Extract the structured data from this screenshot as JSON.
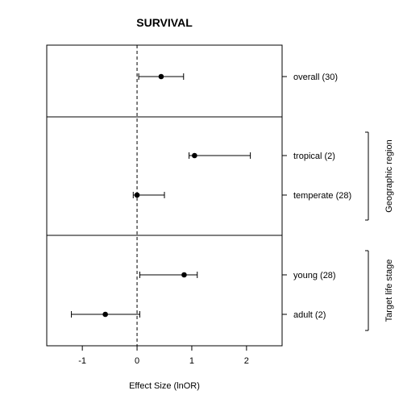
{
  "chart_data": {
    "type": "forest",
    "title": "SURVIVAL",
    "xlabel": "Effect Size (lnOR)",
    "xlim": [
      -1.65,
      2.65
    ],
    "xticks": [
      -1,
      0,
      1,
      2
    ],
    "reference_line": 0,
    "panels": [
      {
        "name": "",
        "rows": [
          {
            "label": "overall (30)",
            "estimate": 0.44,
            "lower": 0.03,
            "upper": 0.85
          }
        ]
      },
      {
        "name": "Geographic region",
        "rows": [
          {
            "label": "tropical (2)",
            "estimate": 1.05,
            "lower": 0.95,
            "upper": 2.07
          },
          {
            "label": "temperate (28)",
            "estimate": 0.0,
            "lower": -0.07,
            "upper": 0.5
          }
        ]
      },
      {
        "name": "Target life stage",
        "rows": [
          {
            "label": "young (28)",
            "estimate": 0.86,
            "lower": 0.05,
            "upper": 1.1
          },
          {
            "label": "adult (2)",
            "estimate": -0.58,
            "lower": -1.2,
            "upper": 0.05
          }
        ]
      }
    ]
  }
}
